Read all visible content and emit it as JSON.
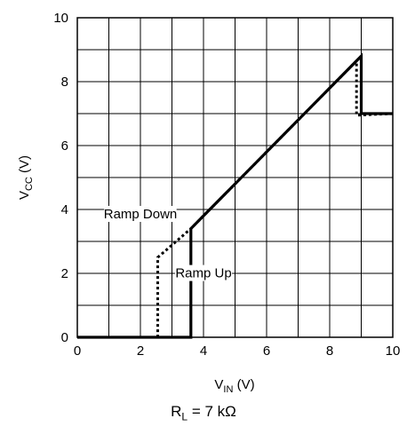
{
  "chart_data": {
    "type": "line",
    "title": "",
    "xlabel": {
      "main": "V",
      "sub": "IN",
      "unit": " (V)"
    },
    "ylabel": {
      "main": "V",
      "sub": "CC",
      "unit": " (V)"
    },
    "xlim": [
      0,
      10
    ],
    "ylim": [
      0,
      10
    ],
    "xticks": [
      0,
      2,
      4,
      6,
      8,
      10
    ],
    "yticks": [
      0,
      2,
      4,
      6,
      8,
      10
    ],
    "grid": true,
    "series": [
      {
        "name": "Ramp Up",
        "style": "solid",
        "x": [
          0,
          3.6,
          3.6,
          9.0,
          9.0,
          10
        ],
        "y": [
          0,
          0,
          3.4,
          8.8,
          7.0,
          7.0
        ]
      },
      {
        "name": "Ramp Down",
        "style": "dashed",
        "x": [
          10,
          8.85,
          8.85,
          3.6,
          2.55,
          2.55,
          0
        ],
        "y": [
          7.0,
          6.95,
          8.65,
          3.4,
          2.5,
          0,
          0
        ]
      }
    ],
    "annotations": [
      {
        "text": "Ramp Down"
      },
      {
        "text": "Ramp Up"
      }
    ]
  },
  "caption": {
    "main": "R",
    "sub": "L",
    "rest": " = 7 kΩ"
  }
}
